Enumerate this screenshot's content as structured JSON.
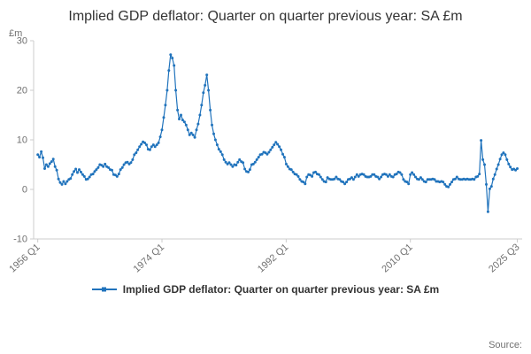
{
  "chart": {
    "title": "Implied GDP deflator: Quarter on quarter previous year: SA £m",
    "source_label": "Source:",
    "legend": {
      "label": "Implied GDP deflator: Quarter on quarter previous year: SA £m"
    }
  },
  "chart_data": {
    "type": "line",
    "title": "Implied GDP deflator: Quarter on quarter previous year: SA £m",
    "xlabel": "",
    "ylabel": "£m",
    "line_color": "#2073bc",
    "axis_color": "#cccccc",
    "tick_text_color": "#707070",
    "grid": false,
    "legend_position": "bottom",
    "x_start": 1956.0,
    "x_step": 0.25,
    "xlim": [
      1955.4,
      2026.2
    ],
    "ylim": [
      -10,
      30
    ],
    "yticks": [
      -10,
      0,
      10,
      20,
      30
    ],
    "xticks": [
      {
        "x": 1956.0,
        "label": "1956 Q1"
      },
      {
        "x": 1974.0,
        "label": "1974 Q1"
      },
      {
        "x": 1992.0,
        "label": "1992 Q1"
      },
      {
        "x": 2010.0,
        "label": "2010 Q1"
      },
      {
        "x": 2025.5,
        "label": "2025 Q3"
      }
    ],
    "series": [
      {
        "name": "Implied GDP deflator: Quarter on quarter previous year: SA £m",
        "color": "#2073bc",
        "values": [
          7.0,
          6.5,
          7.6,
          6.4,
          4.2,
          5.0,
          4.6,
          5.2,
          5.6,
          6.1,
          4.6,
          3.9,
          2.1,
          1.4,
          1.0,
          1.6,
          1.1,
          1.6,
          2.0,
          2.2,
          3.0,
          3.6,
          4.1,
          3.4,
          4.0,
          3.5,
          3.0,
          2.6,
          2.0,
          2.1,
          2.5,
          3.0,
          3.1,
          3.6,
          4.0,
          4.4,
          5.0,
          4.9,
          4.6,
          5.1,
          4.6,
          4.4,
          4.0,
          3.9,
          3.0,
          2.9,
          2.6,
          3.1,
          4.0,
          4.4,
          5.0,
          5.4,
          5.5,
          5.1,
          5.4,
          6.0,
          7.0,
          7.4,
          8.0,
          8.6,
          9.1,
          9.6,
          9.4,
          9.0,
          8.1,
          8.0,
          8.6,
          9.0,
          8.6,
          9.0,
          9.4,
          10.6,
          12.0,
          14.5,
          17.0,
          20.0,
          24.0,
          27.2,
          26.5,
          25.0,
          20.0,
          16.0,
          14.2,
          15.0,
          14.0,
          13.6,
          13.0,
          12.0,
          11.0,
          11.4,
          11.0,
          10.5,
          12.0,
          13.2,
          15.0,
          17.0,
          19.5,
          21.0,
          23.1,
          20.0,
          16.0,
          13.0,
          11.2,
          10.0,
          9.0,
          8.1,
          7.6,
          7.0,
          6.0,
          5.5,
          5.1,
          5.4,
          5.0,
          4.6,
          5.0,
          4.9,
          5.5,
          6.0,
          5.6,
          5.4,
          4.1,
          3.6,
          3.5,
          4.0,
          5.0,
          5.1,
          5.5,
          6.0,
          6.5,
          7.0,
          7.1,
          7.5,
          7.4,
          7.1,
          7.5,
          8.0,
          8.5,
          9.0,
          9.5,
          9.1,
          8.6,
          8.0,
          7.1,
          6.5,
          5.1,
          4.6,
          4.1,
          4.0,
          3.5,
          3.1,
          3.0,
          2.6,
          2.0,
          1.6,
          1.5,
          1.1,
          2.5,
          3.0,
          2.9,
          2.6,
          3.4,
          3.5,
          3.1,
          3.0,
          2.5,
          2.0,
          1.6,
          1.5,
          2.4,
          2.1,
          2.0,
          2.0,
          2.1,
          2.5,
          2.1,
          2.0,
          1.6,
          1.5,
          1.1,
          1.5,
          2.0,
          2.1,
          2.4,
          2.0,
          2.5,
          3.0,
          2.6,
          3.0,
          3.1,
          3.0,
          2.6,
          2.5,
          2.5,
          2.6,
          3.0,
          3.0,
          2.6,
          2.5,
          2.1,
          2.5,
          3.0,
          3.1,
          3.0,
          2.6,
          3.0,
          2.6,
          2.5,
          3.0,
          3.1,
          3.5,
          3.4,
          3.0,
          2.0,
          1.6,
          1.5,
          1.1,
          3.0,
          3.4,
          3.0,
          2.5,
          2.1,
          2.0,
          2.4,
          2.0,
          1.6,
          1.5,
          2.0,
          2.0,
          2.0,
          2.1,
          2.0,
          1.6,
          1.6,
          1.5,
          1.6,
          1.5,
          1.0,
          0.6,
          0.5,
          1.0,
          1.5,
          2.0,
          2.1,
          2.5,
          2.1,
          2.0,
          2.0,
          2.1,
          2.0,
          2.1,
          2.0,
          2.0,
          2.1,
          2.0,
          2.5,
          2.6,
          3.1,
          9.9,
          6.0,
          5.0,
          1.0,
          -4.5,
          0.1,
          0.6,
          2.1,
          3.0,
          4.1,
          5.0,
          6.1,
          7.0,
          7.4,
          7.0,
          6.0,
          5.1,
          4.5,
          4.0,
          4.1,
          3.9,
          4.2
        ]
      }
    ]
  }
}
